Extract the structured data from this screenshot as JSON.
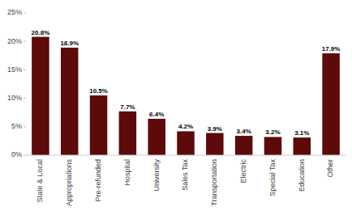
{
  "chart_data": {
    "type": "bar",
    "categories": [
      "State & Local",
      "Appropriations",
      "Pre-refunded",
      "Hospital",
      "University",
      "Sales Tax",
      "Transportation",
      "Electric",
      "Special Tax",
      "Education",
      "Other"
    ],
    "values": [
      20.8,
      18.9,
      10.5,
      7.7,
      6.4,
      4.2,
      3.9,
      3.4,
      3.2,
      3.1,
      17.9
    ],
    "value_labels": [
      "20.8%",
      "18.9%",
      "10.5%",
      "7.7%",
      "6.4%",
      "4.2%",
      "3.9%",
      "3.4%",
      "3.2%",
      "3.1%",
      "17.9%"
    ],
    "color": "#5C0A0A",
    "ylim": [
      0,
      25
    ],
    "yticks": [
      {
        "value": 0,
        "label": "0%"
      },
      {
        "value": 5,
        "label": "5%"
      },
      {
        "value": 10,
        "label": "10%"
      },
      {
        "value": 15,
        "label": "15%"
      },
      {
        "value": 20,
        "label": "20%"
      },
      {
        "value": 25,
        "label": "25%"
      }
    ],
    "grid": false,
    "data_labels": true
  }
}
